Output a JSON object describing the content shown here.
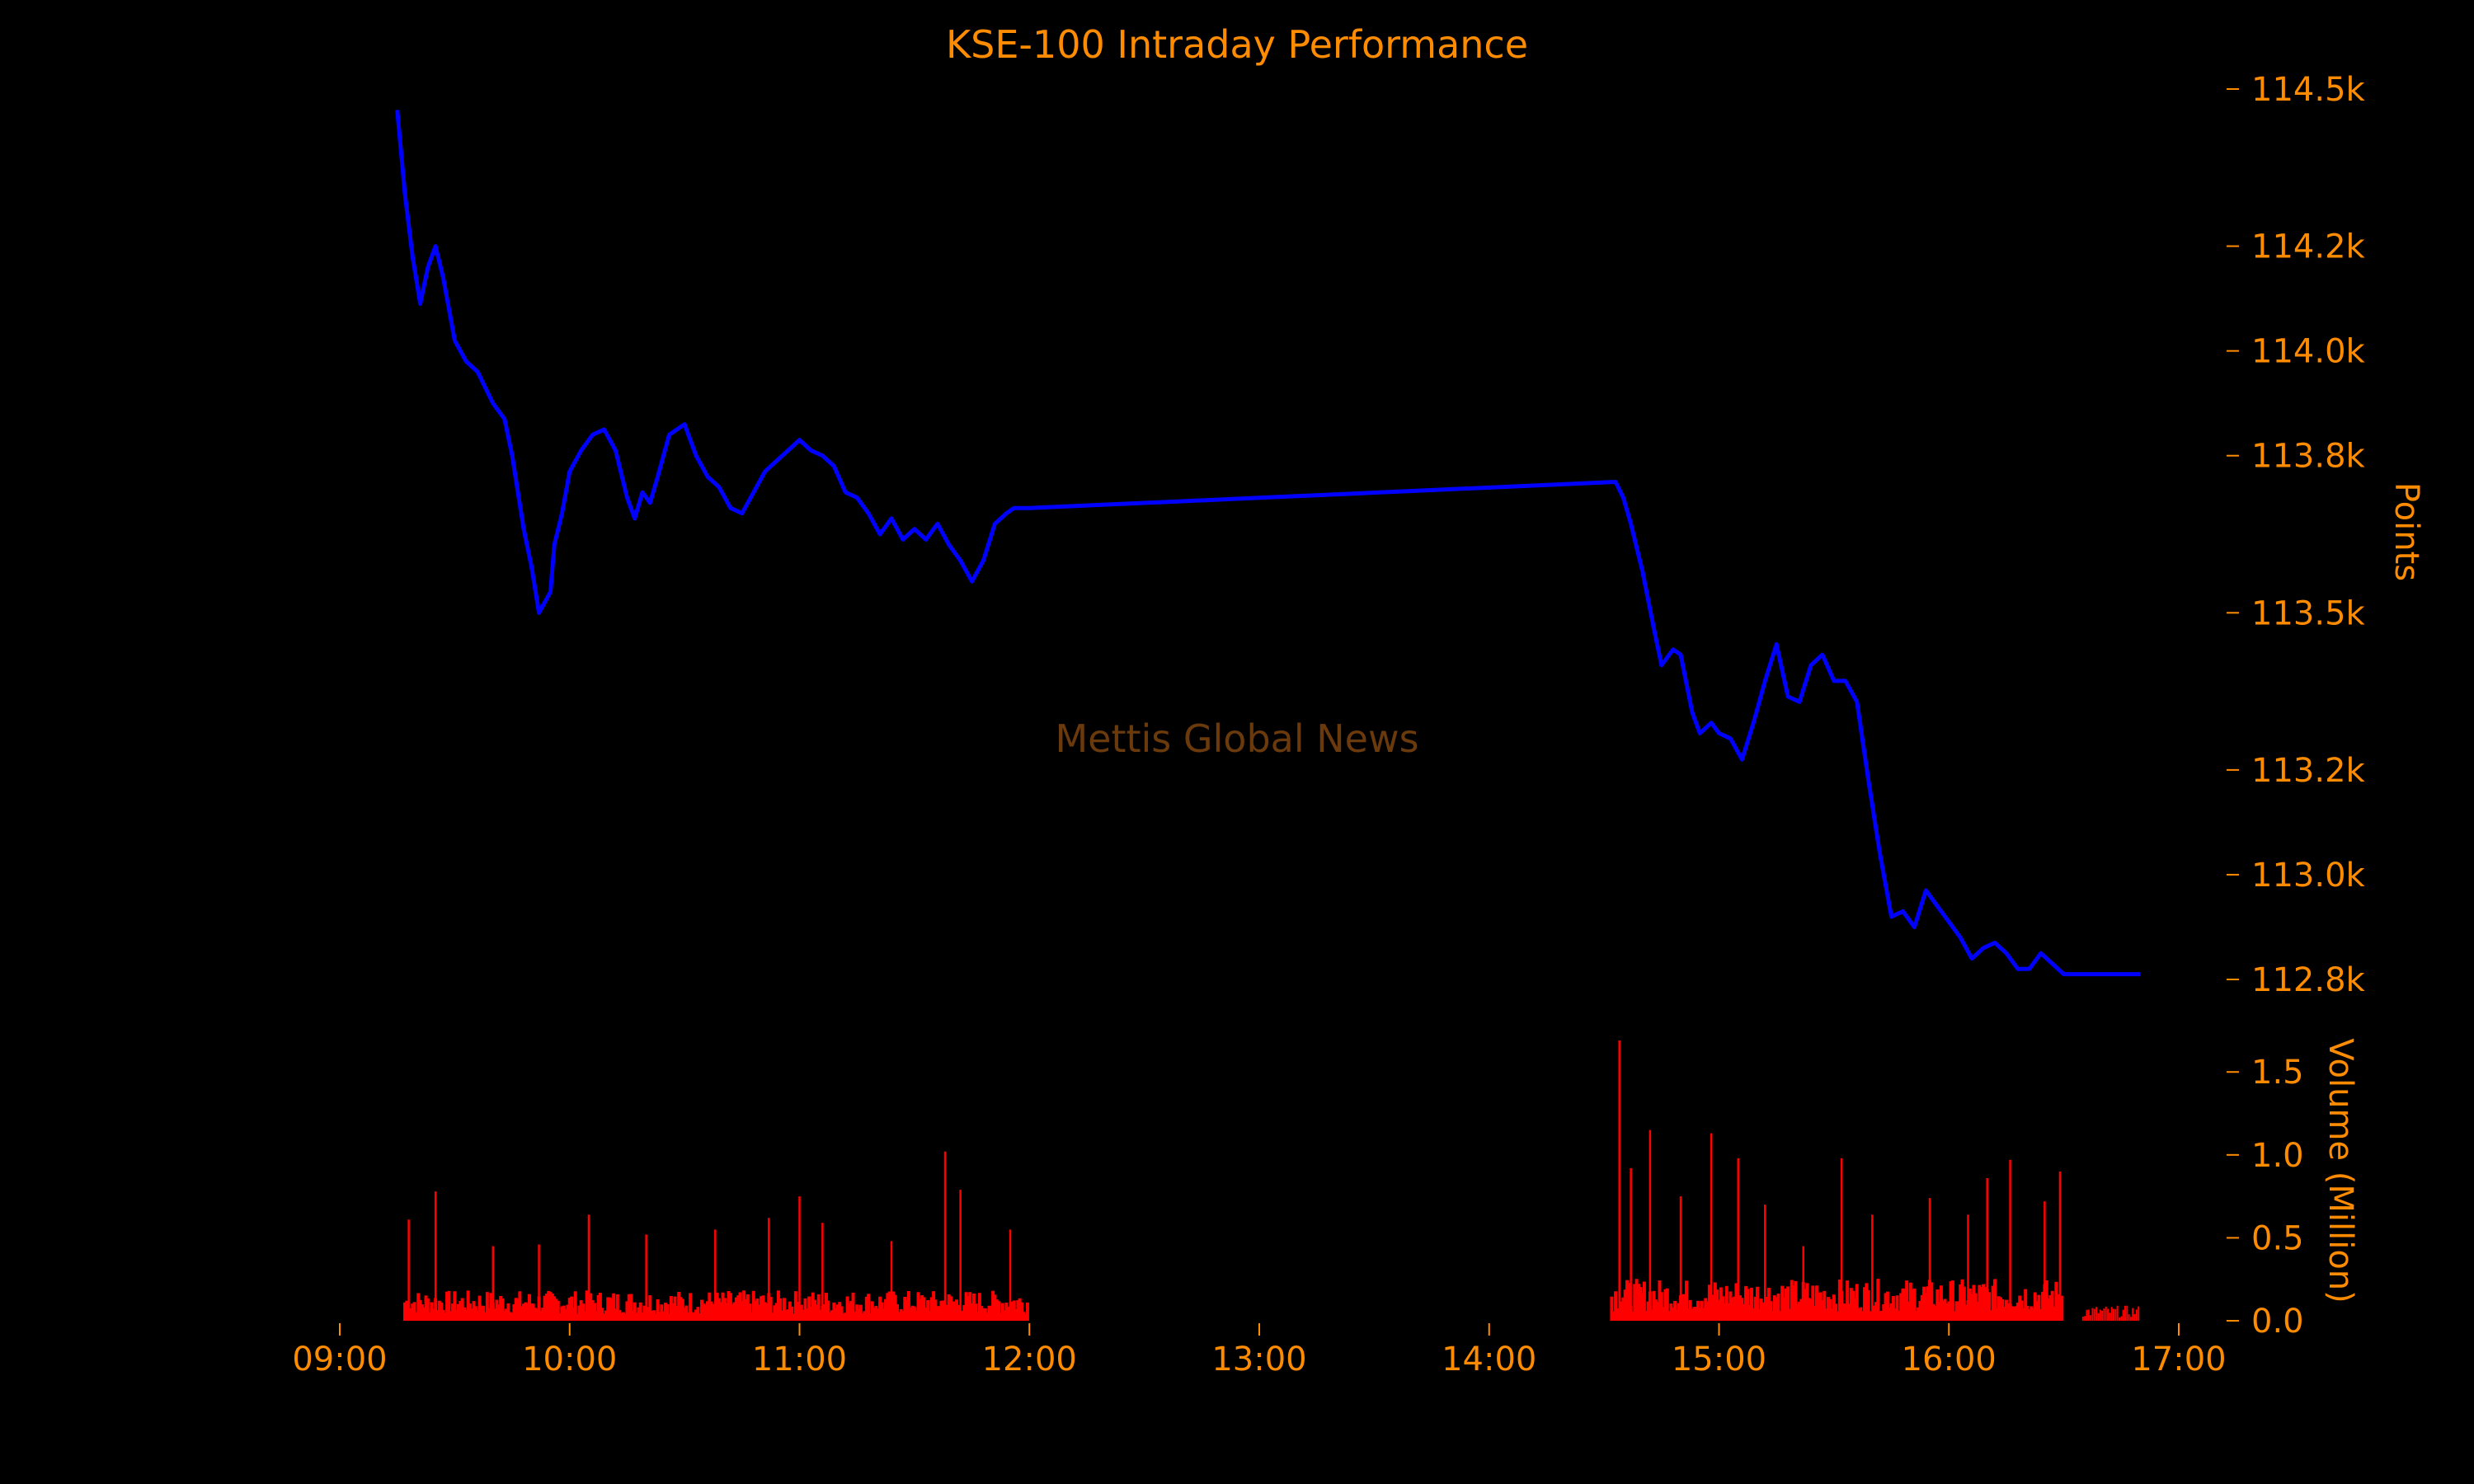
{
  "chart_data": {
    "type": "line",
    "title": "KSE-100 Intraday Performance",
    "watermark": "Mettis Global News",
    "x_axis": {
      "ticks": [
        "09:00",
        "10:00",
        "11:00",
        "12:00",
        "13:00",
        "14:00",
        "15:00",
        "16:00",
        "17:00"
      ],
      "range": [
        "09:00",
        "17:00"
      ]
    },
    "price_axis": {
      "label": "Points",
      "position": "right",
      "ticks": [
        "112.8k",
        "113.0k",
        "113.2k",
        "113.5k",
        "113.8k",
        "114.0k",
        "114.2k",
        "114.5k"
      ],
      "tick_values": [
        112800,
        113000,
        113200,
        113500,
        113800,
        114000,
        114200,
        114500
      ],
      "range": [
        112800,
        114500
      ]
    },
    "volume_axis": {
      "label": "Volume (Million)",
      "position": "right",
      "ticks": [
        "0.0",
        "0.5",
        "1.0",
        "1.5"
      ],
      "tick_values": [
        0,
        0.5,
        1.0,
        1.5
      ],
      "range": [
        0,
        1.7
      ]
    },
    "series": [
      {
        "kind": "line",
        "color": "#0000ff",
        "x": [
          "09:15",
          "09:17",
          "09:19",
          "09:21",
          "09:23",
          "09:25",
          "09:27",
          "09:30",
          "09:33",
          "09:36",
          "09:38",
          "09:40",
          "09:43",
          "09:45",
          "09:48",
          "09:50",
          "09:52",
          "09:55",
          "09:56",
          "09:58",
          "10:00",
          "10:03",
          "10:06",
          "10:09",
          "10:12",
          "10:15",
          "10:17",
          "10:19",
          "10:21",
          "10:23",
          "10:26",
          "10:30",
          "10:33",
          "10:36",
          "10:39",
          "10:42",
          "10:45",
          "10:48",
          "10:51",
          "10:54",
          "10:57",
          "11:00",
          "11:03",
          "11:06",
          "11:09",
          "11:12",
          "11:15",
          "11:18",
          "11:21",
          "11:24",
          "11:27",
          "11:30",
          "11:33",
          "11:36",
          "11:39",
          "11:42",
          "11:45",
          "11:48",
          "11:51",
          "11:54",
          "11:56",
          "11:58",
          "12:00",
          "14:33",
          "14:35",
          "14:37",
          "14:40",
          "14:43",
          "14:45",
          "14:48",
          "14:50",
          "14:53",
          "14:55",
          "14:58",
          "15:00",
          "15:03",
          "15:06",
          "15:09",
          "15:12",
          "15:15",
          "15:18",
          "15:21",
          "15:24",
          "15:27",
          "15:30",
          "15:33",
          "15:36",
          "15:39",
          "15:42",
          "15:45",
          "15:48",
          "15:51",
          "15:54",
          "15:57",
          "16:00",
          "16:03",
          "16:06",
          "16:09",
          "16:12",
          "16:15",
          "16:18",
          "16:21",
          "16:24",
          "16:27",
          "16:30",
          "16:50"
        ],
        "y": [
          114460,
          114300,
          114180,
          114090,
          114160,
          114200,
          114140,
          114020,
          113980,
          113960,
          113930,
          113900,
          113870,
          113800,
          113660,
          113590,
          113500,
          113540,
          113630,
          113690,
          113770,
          113810,
          113840,
          113850,
          113810,
          113720,
          113680,
          113730,
          113710,
          113760,
          113840,
          113860,
          113800,
          113760,
          113740,
          113700,
          113690,
          113730,
          113770,
          113790,
          113810,
          113830,
          113810,
          113800,
          113780,
          113730,
          113720,
          113690,
          113650,
          113680,
          113640,
          113660,
          113640,
          113670,
          113630,
          113600,
          113560,
          113600,
          113670,
          113690,
          113700,
          113700,
          113700,
          113750,
          113720,
          113670,
          113580,
          113470,
          113400,
          113430,
          113420,
          113310,
          113270,
          113290,
          113270,
          113260,
          113220,
          113290,
          113370,
          113440,
          113340,
          113330,
          113400,
          113420,
          113370,
          113370,
          113330,
          113180,
          113040,
          112920,
          112930,
          112900,
          112970,
          112940,
          112910,
          112880,
          112840,
          112860,
          112870,
          112850,
          112820,
          112820,
          112850,
          112830,
          112810,
          112810
        ]
      },
      {
        "kind": "bar",
        "name": "Volume",
        "color": "#ff0000",
        "note_unit": "Million",
        "sessions": [
          [
            "09:17",
            "12:00"
          ],
          [
            "14:32",
            "16:30"
          ],
          [
            "16:35",
            "16:50"
          ]
        ],
        "spikes": [
          {
            "x": "09:18",
            "y": 0.61
          },
          {
            "x": "09:25",
            "y": 0.78
          },
          {
            "x": "09:40",
            "y": 0.45
          },
          {
            "x": "09:52",
            "y": 0.46
          },
          {
            "x": "10:05",
            "y": 0.64
          },
          {
            "x": "10:20",
            "y": 0.52
          },
          {
            "x": "10:38",
            "y": 0.55
          },
          {
            "x": "10:52",
            "y": 0.62
          },
          {
            "x": "11:00",
            "y": 0.75
          },
          {
            "x": "11:06",
            "y": 0.59
          },
          {
            "x": "11:24",
            "y": 0.48
          },
          {
            "x": "11:38",
            "y": 1.02
          },
          {
            "x": "11:42",
            "y": 0.79
          },
          {
            "x": "11:55",
            "y": 0.55
          },
          {
            "x": "14:34",
            "y": 1.69
          },
          {
            "x": "14:37",
            "y": 0.92
          },
          {
            "x": "14:42",
            "y": 1.15
          },
          {
            "x": "14:50",
            "y": 0.75
          },
          {
            "x": "14:58",
            "y": 1.13
          },
          {
            "x": "15:05",
            "y": 0.98
          },
          {
            "x": "15:12",
            "y": 0.7
          },
          {
            "x": "15:22",
            "y": 0.45
          },
          {
            "x": "15:32",
            "y": 0.98
          },
          {
            "x": "15:40",
            "y": 0.64
          },
          {
            "x": "15:55",
            "y": 0.74
          },
          {
            "x": "16:05",
            "y": 0.64
          },
          {
            "x": "16:10",
            "y": 0.86
          },
          {
            "x": "16:16",
            "y": 0.97
          },
          {
            "x": "16:25",
            "y": 0.72
          },
          {
            "x": "16:29",
            "y": 0.9
          }
        ]
      }
    ]
  }
}
